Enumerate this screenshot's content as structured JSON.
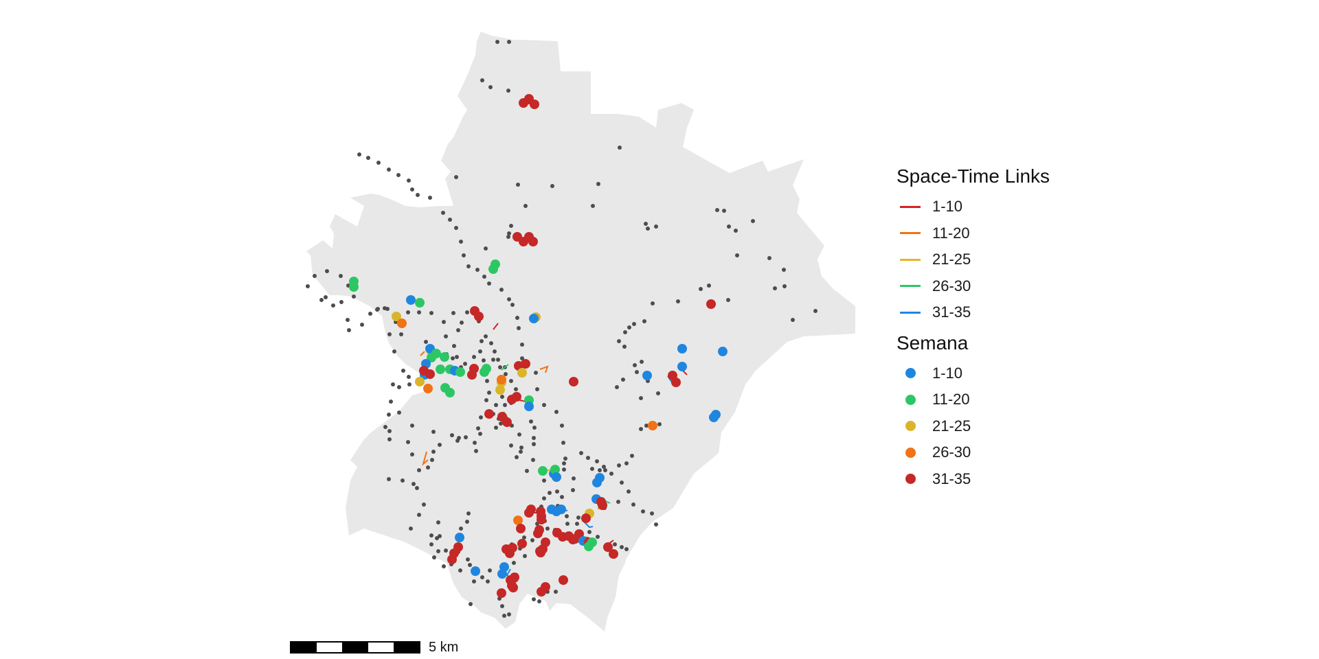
{
  "legend": {
    "links_title": "Space-Time Links",
    "links": [
      {
        "label": "1-10",
        "color": "#d42323"
      },
      {
        "label": "11-20",
        "color": "#f07316"
      },
      {
        "label": "21-25",
        "color": "#e5b42a"
      },
      {
        "label": "26-30",
        "color": "#2cc764"
      },
      {
        "label": "31-35",
        "color": "#1f86e0"
      }
    ],
    "points_title": "Semana",
    "points": [
      {
        "label": "1-10",
        "color": "#1f86e0"
      },
      {
        "label": "11-20",
        "color": "#2cc764"
      },
      {
        "label": "21-25",
        "color": "#d9b52a"
      },
      {
        "label": "26-30",
        "color": "#f07316"
      },
      {
        "label": "31-35",
        "color": "#c62727"
      }
    ]
  },
  "scale_bar": {
    "label": "5 km"
  },
  "colors": {
    "map_fill": "#e8e8e8",
    "background_dot": "#4d4d4d"
  }
}
